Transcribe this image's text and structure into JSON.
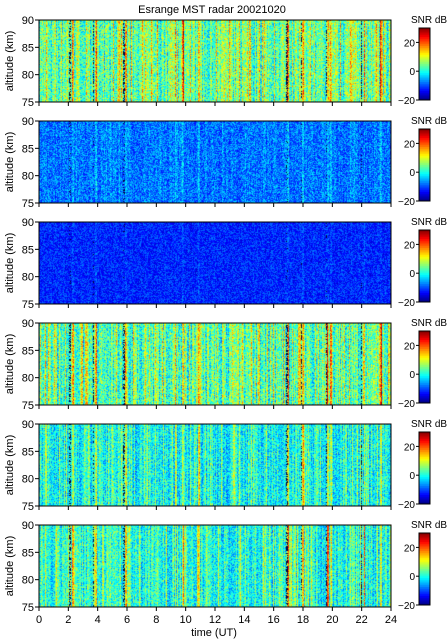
{
  "chart_data": {
    "type": "heatmap",
    "title": "Esrange MST radar 20021020",
    "xlabel": "time (UT)",
    "ylabel": "altitude (km)",
    "xlim": [
      0,
      24
    ],
    "ylim": [
      75,
      90
    ],
    "x_ticks": [
      "0",
      "2",
      "4",
      "6",
      "8",
      "10",
      "12",
      "14",
      "16",
      "18",
      "20",
      "22",
      "24"
    ],
    "y_ticks": [
      "75",
      "80",
      "85",
      "90"
    ],
    "colorbar": {
      "label": "SNR dB",
      "range": [
        -20,
        30
      ],
      "ticks": [
        "−20",
        "0",
        "20"
      ],
      "colormap": "jet"
    },
    "panels": [
      {
        "mean_snr_db": 3,
        "spread_db": 7,
        "stripe_strength": 0.9
      },
      {
        "mean_snr_db": -8,
        "spread_db": 5,
        "stripe_strength": 0.25
      },
      {
        "mean_snr_db": -12,
        "spread_db": 4,
        "stripe_strength": 0.1
      },
      {
        "mean_snr_db": 2,
        "spread_db": 7,
        "stripe_strength": 0.9
      },
      {
        "mean_snr_db": -1,
        "spread_db": 6,
        "stripe_strength": 0.7
      },
      {
        "mean_snr_db": 0,
        "spread_db": 6,
        "stripe_strength": 0.8
      }
    ],
    "bright_columns_ut": [
      2.3,
      3.9,
      5.95,
      9.3,
      9.8,
      10.9,
      17.0,
      18.0,
      19.7,
      19.9,
      22.2,
      23.3
    ],
    "dark_columns_ut": [
      2.1,
      3.7,
      5.8,
      16.9,
      17.9,
      19.6,
      22.0
    ]
  }
}
